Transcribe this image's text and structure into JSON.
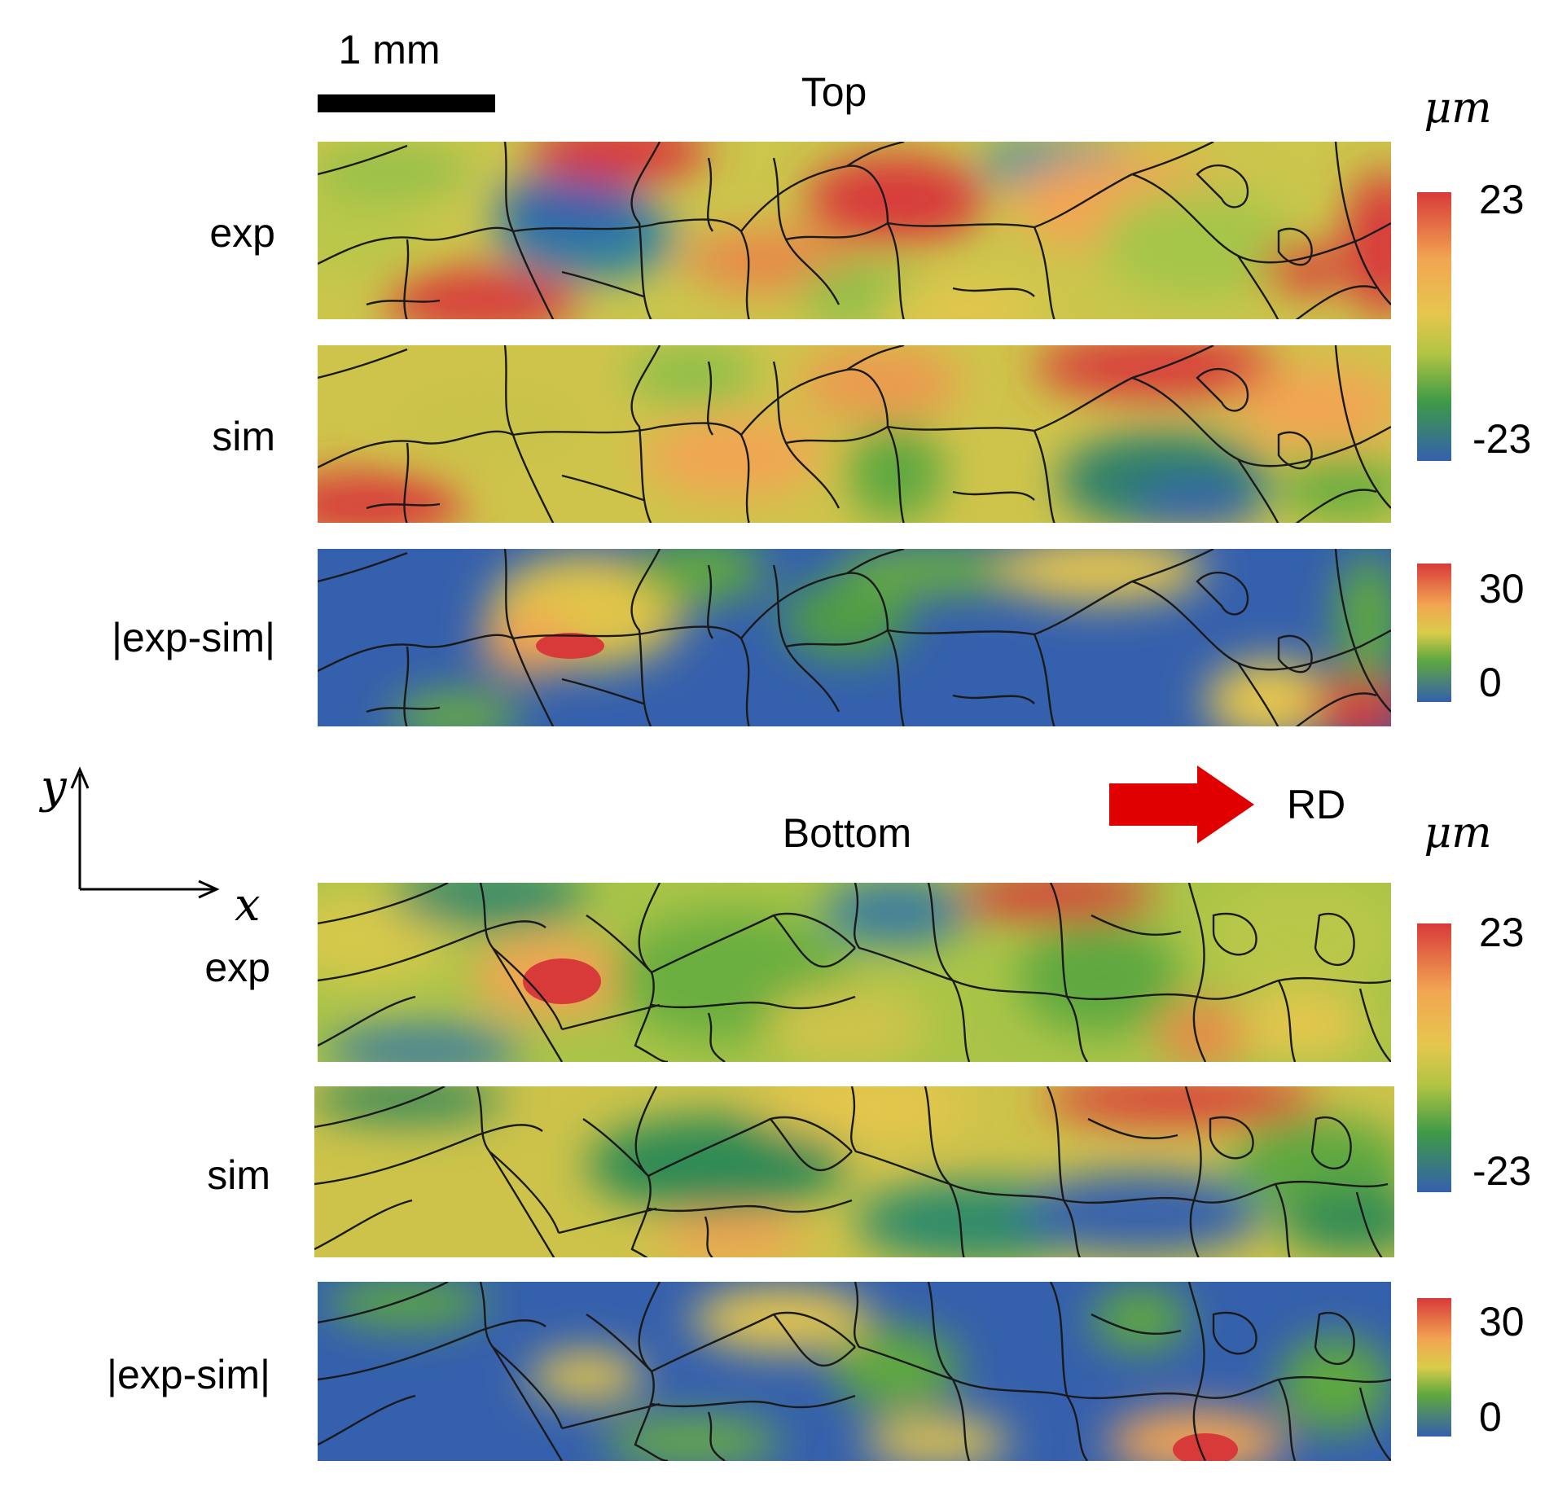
{
  "scale_bar": {
    "label": "1 mm"
  },
  "top_section": {
    "title": "Top",
    "rows": [
      {
        "label": "exp"
      },
      {
        "label": "sim"
      },
      {
        "label": "|exp-sim|"
      }
    ],
    "colorbar_unit": "μm",
    "colorbar_displacement": {
      "max": "23",
      "min": "-23"
    },
    "colorbar_difference": {
      "max": "30",
      "min": "0"
    }
  },
  "bottom_section": {
    "title": "Bottom",
    "rows": [
      {
        "label": "exp"
      },
      {
        "label": "sim"
      },
      {
        "label": "|exp-sim|"
      }
    ],
    "colorbar_unit": "μm",
    "colorbar_displacement": {
      "max": "23",
      "min": "-23"
    },
    "colorbar_difference": {
      "max": "30",
      "min": "0"
    }
  },
  "axes": {
    "x_label": "x",
    "y_label": "y"
  },
  "rolling_direction": {
    "label": "RD"
  },
  "colors": {
    "red": "#d83a3a",
    "orange": "#f2a552",
    "yellow": "#e6c64e",
    "lime": "#b3c443",
    "green": "#5ea83f",
    "dark_green": "#2e8a55",
    "blue": "#3560ad",
    "arrow_red": "#e00000"
  }
}
